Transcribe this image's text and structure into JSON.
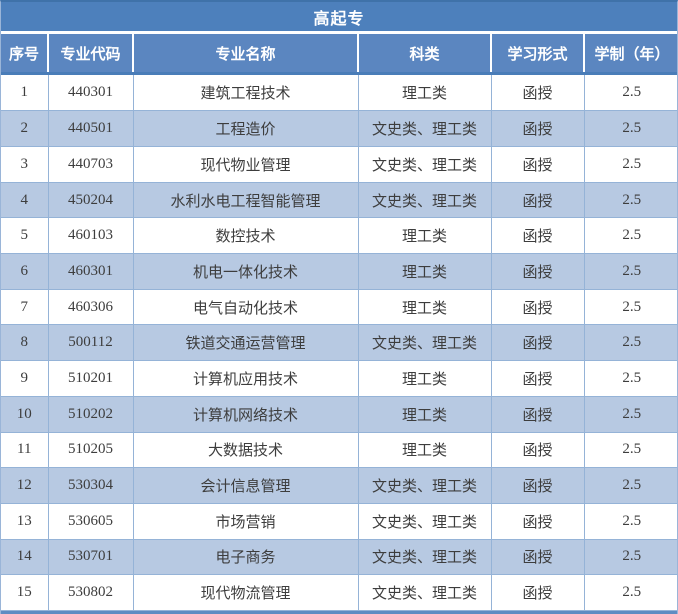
{
  "table": {
    "title": "高起专",
    "columns": [
      "序号",
      "专业代码",
      "专业名称",
      "科类",
      "学习形式",
      "学制（年）"
    ],
    "rows": [
      [
        "1",
        "440301",
        "建筑工程技术",
        "理工类",
        "函授",
        "2.5"
      ],
      [
        "2",
        "440501",
        "工程造价",
        "文史类、理工类",
        "函授",
        "2.5"
      ],
      [
        "3",
        "440703",
        "现代物业管理",
        "文史类、理工类",
        "函授",
        "2.5"
      ],
      [
        "4",
        "450204",
        "水利水电工程智能管理",
        "文史类、理工类",
        "函授",
        "2.5"
      ],
      [
        "5",
        "460103",
        "数控技术",
        "理工类",
        "函授",
        "2.5"
      ],
      [
        "6",
        "460301",
        "机电一体化技术",
        "理工类",
        "函授",
        "2.5"
      ],
      [
        "7",
        "460306",
        "电气自动化技术",
        "理工类",
        "函授",
        "2.5"
      ],
      [
        "8",
        "500112",
        "铁道交通运营管理",
        "文史类、理工类",
        "函授",
        "2.5"
      ],
      [
        "9",
        "510201",
        "计算机应用技术",
        "理工类",
        "函授",
        "2.5"
      ],
      [
        "10",
        "510202",
        "计算机网络技术",
        "理工类",
        "函授",
        "2.5"
      ],
      [
        "11",
        "510205",
        "大数据技术",
        "理工类",
        "函授",
        "2.5"
      ],
      [
        "12",
        "530304",
        "会计信息管理",
        "文史类、理工类",
        "函授",
        "2.5"
      ],
      [
        "13",
        "530605",
        "市场营销",
        "文史类、理工类",
        "函授",
        "2.5"
      ],
      [
        "14",
        "530701",
        "电子商务",
        "文史类、理工类",
        "函授",
        "2.5"
      ],
      [
        "15",
        "530802",
        "现代物流管理",
        "文史类、理工类",
        "函授",
        "2.5"
      ]
    ]
  },
  "colors": {
    "title_bg": "#4d80bc",
    "header_bg": "#5b86c0",
    "stripe_bg": "#b7c9e2",
    "cell_border": "#95b3d7",
    "accent_border": "#4a7db8",
    "header_text": "#ffffff",
    "body_text": "#3d3d3d"
  }
}
